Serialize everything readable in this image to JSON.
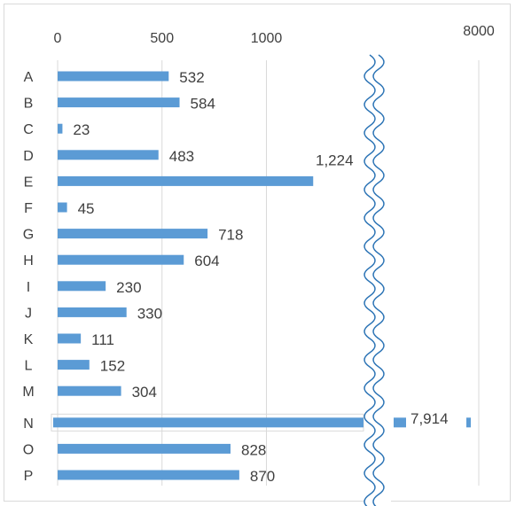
{
  "chart_data": {
    "type": "bar",
    "orientation": "horizontal",
    "axis_break": true,
    "categories": [
      "A",
      "B",
      "C",
      "D",
      "E",
      "F",
      "G",
      "H",
      "I",
      "J",
      "K",
      "L",
      "M",
      "N",
      "O",
      "P"
    ],
    "values": [
      532,
      584,
      23,
      483,
      1224,
      45,
      718,
      604,
      230,
      330,
      111,
      152,
      304,
      7914,
      828,
      870
    ],
    "data_labels": [
      "532",
      "584",
      "23",
      "483",
      "1,224",
      "45",
      "718",
      "604",
      "230",
      "330",
      "111",
      "152",
      "304",
      "7,914",
      "828",
      "870"
    ],
    "x_ticks": [
      "0",
      "500",
      "1000",
      "8000"
    ],
    "x_tick_values": [
      0,
      500,
      1000,
      8000
    ],
    "title": "",
    "xlabel": "",
    "ylabel": "",
    "xlim": [
      0,
      8000
    ],
    "grid": true,
    "legend": "none",
    "bar_color": "#5b9bd5",
    "grid_color": "#d9d9d9",
    "break_color": "#2e75b6"
  }
}
